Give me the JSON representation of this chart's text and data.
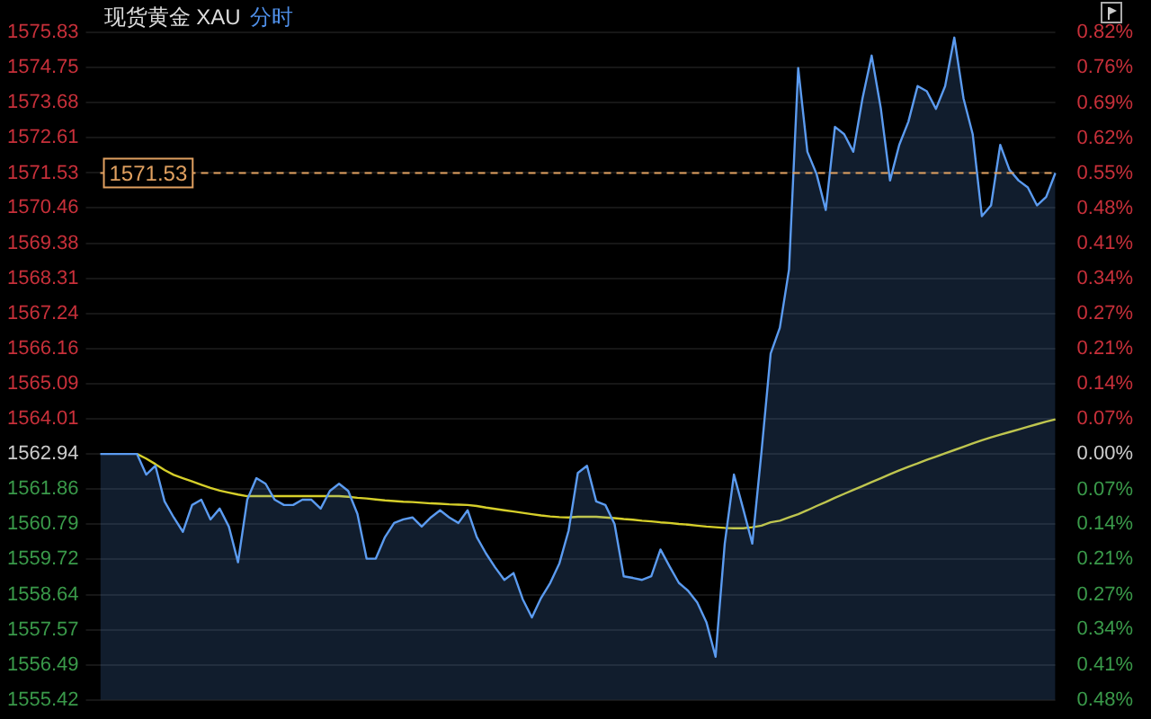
{
  "chart_data": {
    "type": "line",
    "title": "现货黄金 XAU",
    "subtitle": "分时",
    "categories": [
      null,
      null,
      null,
      null,
      null,
      null,
      null,
      null,
      null,
      null,
      null,
      null,
      null,
      null,
      null,
      null,
      null,
      null,
      null,
      null,
      null,
      null,
      null,
      null,
      null,
      null,
      null,
      null,
      null,
      null,
      null,
      null,
      null,
      null,
      null,
      null,
      null,
      null,
      null,
      null,
      null,
      null,
      null,
      null,
      null,
      null,
      null,
      null,
      null,
      null,
      null,
      null,
      null,
      null,
      null,
      null,
      null,
      null,
      null,
      null,
      null,
      null,
      null,
      null,
      null,
      null,
      null,
      null,
      null,
      null,
      null,
      null,
      null,
      null,
      null,
      null,
      null,
      null,
      null,
      null,
      null,
      null,
      null,
      null,
      null,
      null,
      null,
      null,
      null,
      null,
      null,
      null,
      null,
      null,
      null,
      null,
      null,
      null,
      null,
      null,
      null,
      null,
      null,
      null,
      null
    ],
    "series": [
      {
        "type": "area",
        "color": "#5b9bf0",
        "values": [
          1562.94,
          1562.94,
          1562.94,
          1562.94,
          1562.94,
          1562.31,
          1562.58,
          1561.49,
          1561.0,
          1560.56,
          1561.38,
          1561.54,
          1560.94,
          1561.27,
          1560.72,
          1559.63,
          1561.54,
          1562.2,
          1562.03,
          1561.54,
          1561.38,
          1561.38,
          1561.54,
          1561.54,
          1561.27,
          1561.81,
          1562.03,
          1561.81,
          1561.11,
          1559.74,
          1559.74,
          1560.4,
          1560.83,
          1560.94,
          1561.0,
          1560.72,
          1561.0,
          1561.22,
          1561.0,
          1560.83,
          1561.22,
          1560.4,
          1559.9,
          1559.47,
          1559.09,
          1559.3,
          1558.5,
          1557.94,
          1558.54,
          1559.0,
          1559.6,
          1560.6,
          1562.36,
          1562.58,
          1561.49,
          1561.38,
          1560.8,
          1559.2,
          1559.15,
          1559.09,
          1559.2,
          1560.02,
          1559.5,
          1559.0,
          1558.76,
          1558.4,
          1557.8,
          1556.74,
          1560.2,
          1562.31,
          1561.27,
          1560.2,
          1563.0,
          1566.01,
          1566.8,
          1568.58,
          1574.74,
          1572.18,
          1571.5,
          1570.4,
          1572.94,
          1572.72,
          1572.18,
          1573.81,
          1575.12,
          1573.5,
          1571.3,
          1572.39,
          1573.1,
          1574.19,
          1574.03,
          1573.49,
          1574.19,
          1575.67,
          1573.81,
          1572.72,
          1570.21,
          1570.54,
          1572.39,
          1571.63,
          1571.3,
          1571.09,
          1570.54,
          1570.8,
          1571.53
        ]
      },
      {
        "type": "line",
        "color": "#d6cf2a",
        "values": [
          null,
          null,
          null,
          null,
          1562.94,
          1562.8,
          1562.63,
          1562.45,
          1562.3,
          1562.2,
          1562.1,
          1562.0,
          1561.9,
          1561.82,
          1561.76,
          1561.7,
          1561.65,
          1561.65,
          1561.65,
          1561.65,
          1561.65,
          1561.65,
          1561.65,
          1561.65,
          1561.65,
          1561.65,
          1561.65,
          1561.63,
          1561.6,
          1561.58,
          1561.55,
          1561.52,
          1561.5,
          1561.48,
          1561.47,
          1561.45,
          1561.43,
          1561.42,
          1561.4,
          1561.39,
          1561.38,
          1561.35,
          1561.3,
          1561.26,
          1561.22,
          1561.18,
          1561.14,
          1561.1,
          1561.06,
          1561.03,
          1561.01,
          1561.0,
          1561.02,
          1561.02,
          1561.02,
          1561.0,
          1560.98,
          1560.95,
          1560.93,
          1560.9,
          1560.88,
          1560.85,
          1560.83,
          1560.8,
          1560.78,
          1560.75,
          1560.72,
          1560.7,
          1560.68,
          1560.67,
          1560.67,
          1560.7,
          1560.75,
          1560.85,
          1560.9,
          1561.0,
          1561.1,
          1561.22,
          1561.35,
          1561.47,
          1561.6,
          1561.72,
          1561.84,
          1561.96,
          1562.08,
          1562.2,
          1562.32,
          1562.44,
          1562.55,
          1562.65,
          1562.76,
          1562.86,
          1562.96,
          1563.06,
          1563.16,
          1563.26,
          1563.36,
          1563.45,
          1563.53,
          1563.61,
          1563.69,
          1563.77,
          1563.85,
          1563.93,
          1564.0
        ]
      }
    ],
    "ylim": [
      1555.42,
      1575.83
    ],
    "yticks": [
      1575.83,
      1574.75,
      1573.68,
      1572.61,
      1571.53,
      1570.46,
      1569.38,
      1568.31,
      1567.24,
      1566.16,
      1565.09,
      1564.01,
      1562.94,
      1561.86,
      1560.79,
      1559.72,
      1558.64,
      1557.57,
      1556.49,
      1555.42
    ],
    "y2lim": [
      -0.481,
      0.825
    ],
    "y2ticks": [
      {
        "value": 0.825,
        "label": "0.82%"
      },
      {
        "value": 0.756,
        "label": "0.76%"
      },
      {
        "value": 0.687,
        "label": "0.69%"
      },
      {
        "value": 0.618,
        "label": "0.62%"
      },
      {
        "value": 0.549,
        "label": "0.55%"
      },
      {
        "value": 0.481,
        "label": "0.48%"
      },
      {
        "value": 0.412,
        "label": "0.41%"
      },
      {
        "value": 0.343,
        "label": "0.34%"
      },
      {
        "value": 0.275,
        "label": "0.27%"
      },
      {
        "value": 0.206,
        "label": "0.21%"
      },
      {
        "value": 0.137,
        "label": "0.14%"
      },
      {
        "value": 0.069,
        "label": "0.07%"
      },
      {
        "value": 0,
        "label": "0.00%"
      },
      {
        "value": -0.069,
        "label": "0.07%"
      },
      {
        "value": -0.137,
        "label": "0.14%"
      },
      {
        "value": -0.206,
        "label": "0.21%"
      },
      {
        "value": -0.275,
        "label": "0.27%"
      },
      {
        "value": -0.343,
        "label": "0.34%"
      },
      {
        "value": -0.412,
        "label": "0.41%"
      },
      {
        "value": -0.481,
        "label": "0.48%"
      }
    ],
    "ref_lines": [
      {
        "axis": "y",
        "value": 1571.53,
        "label": "1571.53",
        "color": "#e0a060",
        "line_style": "dashed"
      }
    ],
    "grid": "y",
    "legend": false,
    "tick_labels": "y",
    "marker": "none",
    "line_style": "solid"
  }
}
